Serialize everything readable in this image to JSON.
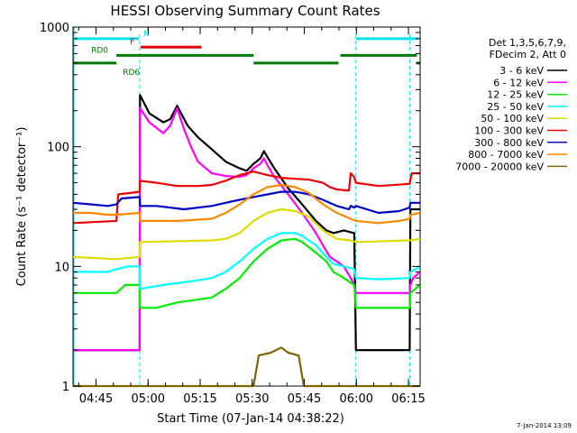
{
  "figure": {
    "stamp": "7-Jan-2014 13:09"
  },
  "chart_data": {
    "type": "line",
    "title": "HESSI Observing Summary Count Rates",
    "xlabel": "Start Time (07-Jan-14 04:38:22)",
    "ylabel": "Count Rate (s⁻¹ detector⁻¹)",
    "x_units": "minutes since 04:38:22",
    "xlim": [
      0,
      100
    ],
    "ylim": [
      1,
      1000
    ],
    "yscale": "log",
    "grid": false,
    "legend_position": "right",
    "legend_header": [
      "Det 1,3,5,6,7,9,",
      "FDecim 2, Att 0"
    ],
    "x_ticks": [
      {
        "label": "04:45",
        "x": 6.63
      },
      {
        "label": "05:00",
        "x": 21.63
      },
      {
        "label": "05:15",
        "x": 36.63
      },
      {
        "label": "05:30",
        "x": 51.63
      },
      {
        "label": "05:45",
        "x": 66.63
      },
      {
        "label": "06:00",
        "x": 81.63
      },
      {
        "label": "06:15",
        "x": 96.63
      }
    ],
    "y_ticks": [
      {
        "label": "1",
        "y": 1
      },
      {
        "label": "10",
        "y": 10
      },
      {
        "label": "100",
        "y": 100
      },
      {
        "label": "1000",
        "y": 1000
      }
    ],
    "night_markers": [
      {
        "x": 19.2
      },
      {
        "x": 81.5
      },
      {
        "x": 97.0
      }
    ],
    "flags": [
      {
        "label": "N",
        "color": "#00e5ee",
        "y": 800,
        "segments": [
          [
            0,
            19.0
          ],
          [
            81.5,
            99.5
          ]
        ]
      },
      {
        "label": "F",
        "color": "#e00000",
        "y": 680,
        "segments": [
          [
            19.5,
            37.0
          ]
        ]
      },
      {
        "label": "RD0",
        "color": "#007a00",
        "y": 580,
        "segments": [
          [
            12.5,
            52.0
          ],
          [
            77.0,
            99.0
          ]
        ]
      },
      {
        "label": "RD6",
        "color": "#007a00",
        "y": 500,
        "segments": [
          [
            0,
            12.5
          ],
          [
            52.0,
            76.5
          ],
          [
            99.0,
            100
          ]
        ]
      }
    ],
    "series": [
      {
        "name": "3 - 6 keV",
        "color": "#000000",
        "points": [
          [
            0,
            2
          ],
          [
            19.2,
            2
          ],
          [
            19.3,
            270
          ],
          [
            22,
            190
          ],
          [
            26,
            160
          ],
          [
            28,
            170
          ],
          [
            30,
            220
          ],
          [
            33,
            150
          ],
          [
            36,
            120
          ],
          [
            40,
            95
          ],
          [
            44,
            75
          ],
          [
            48,
            66
          ],
          [
            50,
            63
          ],
          [
            52,
            72
          ],
          [
            54,
            80
          ],
          [
            55,
            92
          ],
          [
            56,
            82
          ],
          [
            58,
            66
          ],
          [
            62,
            45
          ],
          [
            66,
            33
          ],
          [
            70,
            24
          ],
          [
            73,
            20
          ],
          [
            75,
            19
          ],
          [
            78,
            20
          ],
          [
            81,
            19
          ],
          [
            81.5,
            2
          ],
          [
            97,
            2
          ],
          [
            97.2,
            30
          ],
          [
            100,
            30
          ]
        ]
      },
      {
        "name": "6 - 12 keV",
        "color": "#ff00ff",
        "points": [
          [
            0,
            2
          ],
          [
            19.2,
            2
          ],
          [
            19.3,
            210
          ],
          [
            22,
            160
          ],
          [
            26,
            130
          ],
          [
            28,
            150
          ],
          [
            30,
            210
          ],
          [
            32,
            140
          ],
          [
            34,
            100
          ],
          [
            36,
            75
          ],
          [
            40,
            60
          ],
          [
            44,
            57
          ],
          [
            48,
            56
          ],
          [
            50,
            58
          ],
          [
            52,
            66
          ],
          [
            54,
            72
          ],
          [
            55,
            80
          ],
          [
            56,
            70
          ],
          [
            58,
            56
          ],
          [
            62,
            40
          ],
          [
            66,
            28
          ],
          [
            70,
            19
          ],
          [
            72,
            15
          ],
          [
            74,
            12
          ],
          [
            76,
            11
          ],
          [
            78,
            10
          ],
          [
            80,
            8
          ],
          [
            81,
            7
          ],
          [
            81.5,
            6
          ],
          [
            97,
            6
          ],
          [
            97.2,
            7
          ],
          [
            98,
            8
          ],
          [
            100,
            9
          ]
        ]
      },
      {
        "name": "12 - 25 keV",
        "color": "#00ee00",
        "points": [
          [
            0,
            6
          ],
          [
            12.5,
            6
          ],
          [
            15,
            7
          ],
          [
            19.2,
            7
          ],
          [
            19.3,
            4.5
          ],
          [
            24,
            4.5
          ],
          [
            30,
            5
          ],
          [
            40,
            5.5
          ],
          [
            44,
            6.5
          ],
          [
            48,
            8
          ],
          [
            52,
            11
          ],
          [
            56,
            14
          ],
          [
            60,
            16.5
          ],
          [
            64,
            17
          ],
          [
            66,
            16
          ],
          [
            70,
            13
          ],
          [
            73,
            11
          ],
          [
            75,
            9
          ],
          [
            78,
            8
          ],
          [
            81,
            7
          ],
          [
            81.5,
            4.5
          ],
          [
            97,
            4.5
          ],
          [
            97.2,
            6
          ],
          [
            100,
            7
          ]
        ]
      },
      {
        "name": "25 - 50 keV",
        "color": "#00ffff",
        "points": [
          [
            0,
            9
          ],
          [
            10,
            9
          ],
          [
            12.5,
            9.5
          ],
          [
            16,
            10
          ],
          [
            19.2,
            10
          ],
          [
            19.3,
            6.5
          ],
          [
            26,
            7
          ],
          [
            34,
            7.5
          ],
          [
            40,
            8
          ],
          [
            44,
            9
          ],
          [
            48,
            11
          ],
          [
            52,
            14
          ],
          [
            56,
            17
          ],
          [
            60,
            19
          ],
          [
            64,
            19
          ],
          [
            66,
            18
          ],
          [
            70,
            15
          ],
          [
            73,
            12
          ],
          [
            75,
            10.5
          ],
          [
            78,
            10
          ],
          [
            81,
            9.5
          ],
          [
            81.5,
            8
          ],
          [
            88,
            7.8
          ],
          [
            97,
            8
          ],
          [
            97.2,
            9
          ],
          [
            100,
            10
          ]
        ]
      },
      {
        "name": "50 - 100 keV",
        "color": "#dddd00",
        "points": [
          [
            0,
            12
          ],
          [
            12.5,
            11.5
          ],
          [
            19.2,
            12
          ],
          [
            19.3,
            16
          ],
          [
            40,
            16.5
          ],
          [
            44,
            17
          ],
          [
            48,
            19
          ],
          [
            52,
            24
          ],
          [
            56,
            28
          ],
          [
            60,
            30
          ],
          [
            64,
            29
          ],
          [
            68,
            26
          ],
          [
            72,
            20
          ],
          [
            76,
            17
          ],
          [
            80,
            16.5
          ],
          [
            81.5,
            16
          ],
          [
            97,
            16.5
          ],
          [
            100,
            17
          ]
        ]
      },
      {
        "name": "100 - 300 keV",
        "color": "#ee0000",
        "points": [
          [
            0,
            23
          ],
          [
            12.5,
            24
          ],
          [
            13,
            40
          ],
          [
            19.2,
            42
          ],
          [
            19.3,
            52
          ],
          [
            24,
            50
          ],
          [
            30,
            47
          ],
          [
            36,
            47
          ],
          [
            40,
            48
          ],
          [
            44,
            52
          ],
          [
            48,
            58
          ],
          [
            52,
            62
          ],
          [
            56,
            58
          ],
          [
            60,
            55
          ],
          [
            64,
            54
          ],
          [
            68,
            53
          ],
          [
            72,
            50
          ],
          [
            74,
            46
          ],
          [
            76,
            44
          ],
          [
            79.5,
            43
          ],
          [
            80,
            60
          ],
          [
            81,
            56
          ],
          [
            81.5,
            50
          ],
          [
            88,
            47
          ],
          [
            97,
            49
          ],
          [
            97.2,
            53
          ],
          [
            97.6,
            60
          ],
          [
            100,
            60
          ]
        ]
      },
      {
        "name": "300 - 800 keV",
        "color": "#0000cc",
        "points": [
          [
            0,
            34
          ],
          [
            5,
            33
          ],
          [
            10,
            32
          ],
          [
            12.5,
            33
          ],
          [
            14,
            37
          ],
          [
            19.2,
            38
          ],
          [
            19.3,
            32
          ],
          [
            24,
            32
          ],
          [
            28,
            31
          ],
          [
            32,
            30
          ],
          [
            36,
            31
          ],
          [
            40,
            32
          ],
          [
            44,
            34
          ],
          [
            48,
            36
          ],
          [
            52,
            38
          ],
          [
            56,
            40
          ],
          [
            60,
            42
          ],
          [
            64,
            42
          ],
          [
            68,
            40
          ],
          [
            72,
            36
          ],
          [
            76,
            32
          ],
          [
            79.5,
            30
          ],
          [
            80,
            32
          ],
          [
            81,
            31
          ],
          [
            81.5,
            32
          ],
          [
            88,
            28
          ],
          [
            94,
            29
          ],
          [
            97,
            31
          ],
          [
            97.2,
            34
          ],
          [
            100,
            34
          ]
        ]
      },
      {
        "name": "800 - 7000 keV",
        "color": "#ff8800",
        "points": [
          [
            0,
            28
          ],
          [
            5,
            28
          ],
          [
            10,
            27
          ],
          [
            12.5,
            27
          ],
          [
            19.2,
            28
          ],
          [
            19.3,
            24
          ],
          [
            30,
            24
          ],
          [
            40,
            25
          ],
          [
            44,
            28
          ],
          [
            48,
            33
          ],
          [
            52,
            40
          ],
          [
            56,
            46
          ],
          [
            60,
            48
          ],
          [
            64,
            46
          ],
          [
            68,
            41
          ],
          [
            72,
            33
          ],
          [
            76,
            28
          ],
          [
            80,
            25
          ],
          [
            81.5,
            24
          ],
          [
            88,
            23
          ],
          [
            94,
            24
          ],
          [
            97,
            25
          ],
          [
            97.2,
            27
          ],
          [
            100,
            28
          ]
        ]
      },
      {
        "name": "7000 - 20000 keV",
        "color": "#806600",
        "points": [
          [
            0,
            1
          ],
          [
            52,
            1
          ],
          [
            53.5,
            1.8
          ],
          [
            57,
            1.9
          ],
          [
            60,
            2.1
          ],
          [
            62,
            1.9
          ],
          [
            65,
            1.8
          ],
          [
            66.5,
            1
          ],
          [
            100,
            1
          ]
        ]
      }
    ]
  }
}
